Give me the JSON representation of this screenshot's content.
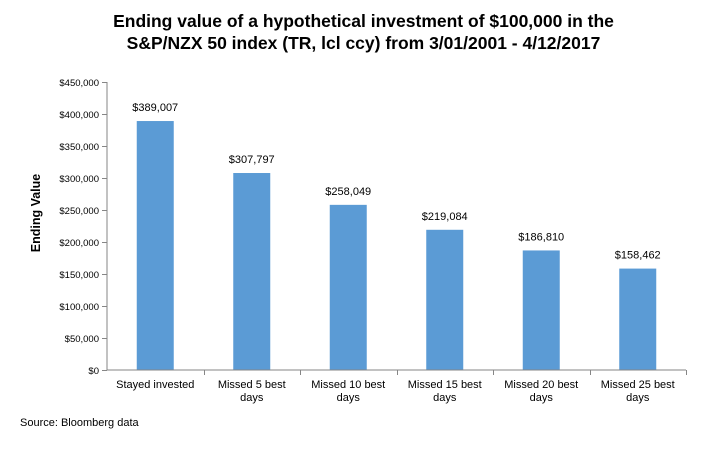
{
  "title_lines": [
    "Ending value of a hypothetical investment of $100,000 in the",
    "S&P/NZX 50 index (TR, lcl ccy) from 3/01/2001 - 4/12/2017"
  ],
  "source": "Source: Bloomberg data",
  "colors": {
    "bar": "#5b9bd5",
    "axis": "#868686",
    "text": "#000000"
  },
  "chart_data": {
    "type": "bar",
    "title": "Ending value of a hypothetical investment of $100,000 in the S&P/NZX 50 index (TR, lcl ccy) from 3/01/2001 - 4/12/2017",
    "xlabel": "",
    "ylabel": "Ending Value",
    "categories": [
      [
        "Stayed invested"
      ],
      [
        "Missed 5 best",
        "days"
      ],
      [
        "Missed 10 best",
        "days"
      ],
      [
        "Missed 15 best",
        "days"
      ],
      [
        "Missed 20 best",
        "days"
      ],
      [
        "Missed 25 best",
        "days"
      ]
    ],
    "values": [
      389007,
      307797,
      258049,
      219084,
      186810,
      158462
    ],
    "data_labels": [
      "$389,007",
      "$307,797",
      "$258,049",
      "$219,084",
      "$186,810",
      "$158,462"
    ],
    "ylim": [
      0,
      450000
    ],
    "yticks": [
      0,
      50000,
      100000,
      150000,
      200000,
      250000,
      300000,
      350000,
      400000,
      450000
    ],
    "ytick_labels": [
      "$0",
      "$50,000",
      "$100,000",
      "$150,000",
      "$200,000",
      "$250,000",
      "$300,000",
      "$350,000",
      "$400,000",
      "$450,000"
    ],
    "grid": false,
    "legend": "none"
  }
}
